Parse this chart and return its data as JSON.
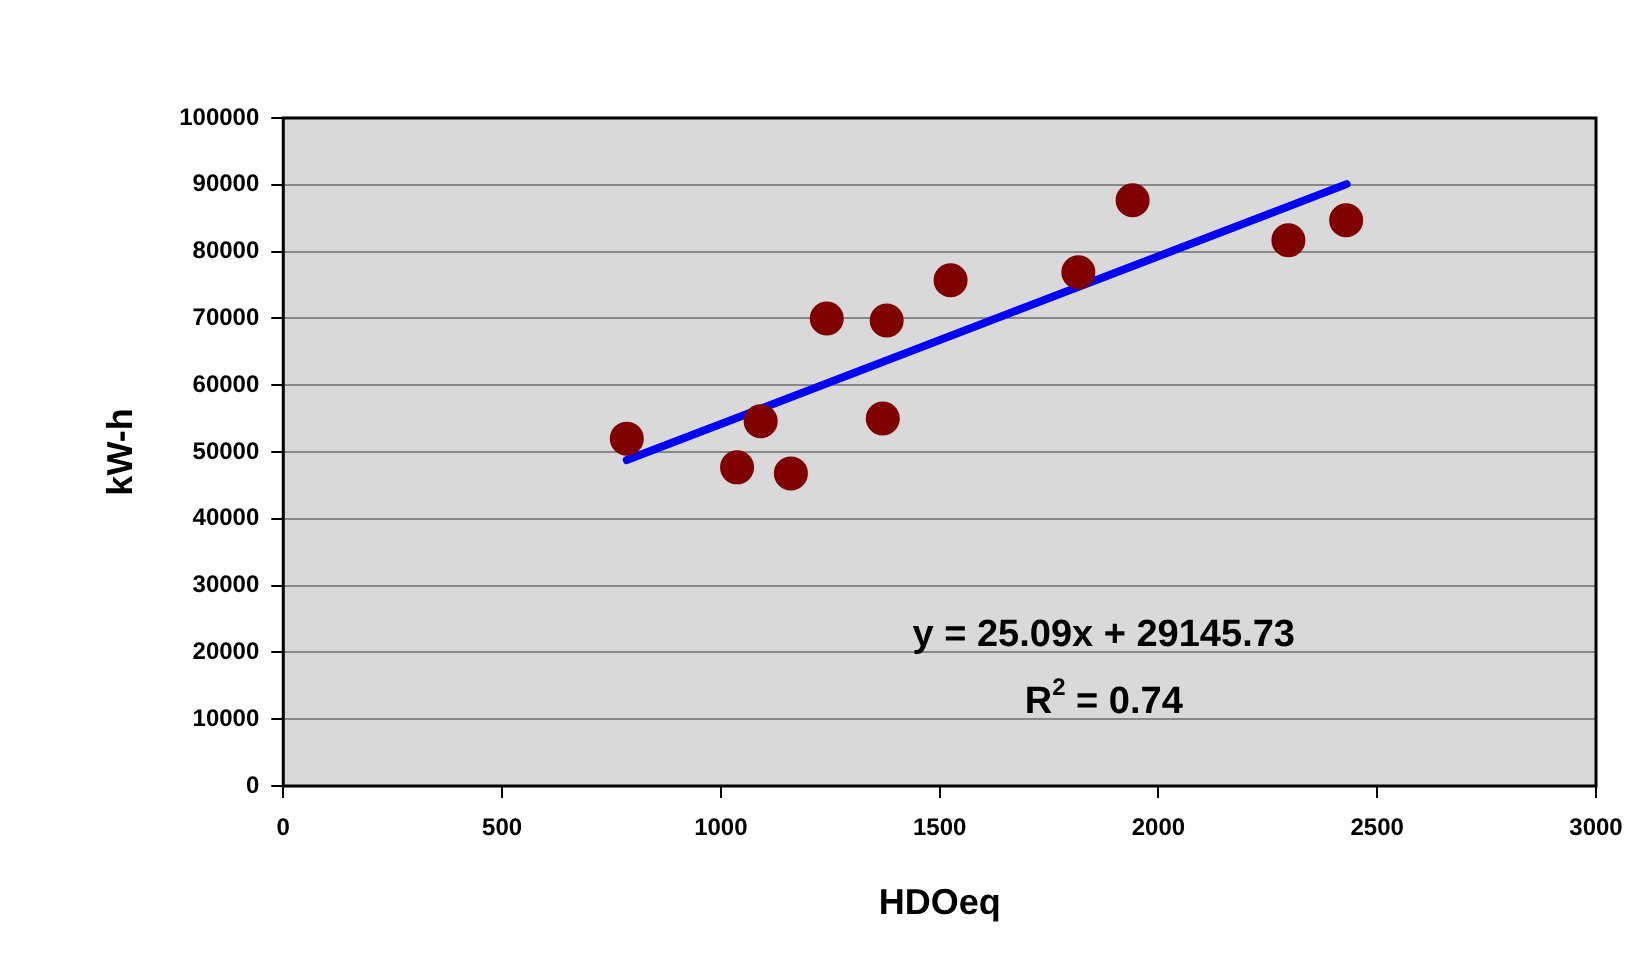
{
  "chart_data": {
    "type": "scatter",
    "xlabel": "HDOeq",
    "ylabel": "kW-h",
    "xlim": [
      0,
      3000
    ],
    "xticks": [
      0,
      500,
      1000,
      1500,
      2000,
      2500,
      3000
    ],
    "ylim": [
      0,
      100000
    ],
    "yticks": [
      0,
      10000,
      20000,
      30000,
      40000,
      50000,
      60000,
      70000,
      80000,
      90000,
      100000
    ],
    "grid": "y",
    "legend": false,
    "marker": "circle",
    "series": [
      {
        "color": "#800000",
        "x": [
          785,
          1037,
          1091,
          1160,
          1242,
          1379,
          1370,
          1525,
          1817,
          1941,
          2297,
          2429
        ],
        "values": [
          52000,
          47700,
          54600,
          46800,
          70000,
          69700,
          55000,
          75700,
          76900,
          87700,
          81700,
          84700
        ]
      },
      {
        "type": "line",
        "marker": "none",
        "color": "#0000ff",
        "x": [
          785,
          2430
        ],
        "values": [
          48800,
          90100
        ]
      }
    ],
    "annotations": [
      "y = 25.09x + 29145.73",
      "R$^{2}$ = 0.74"
    ]
  }
}
